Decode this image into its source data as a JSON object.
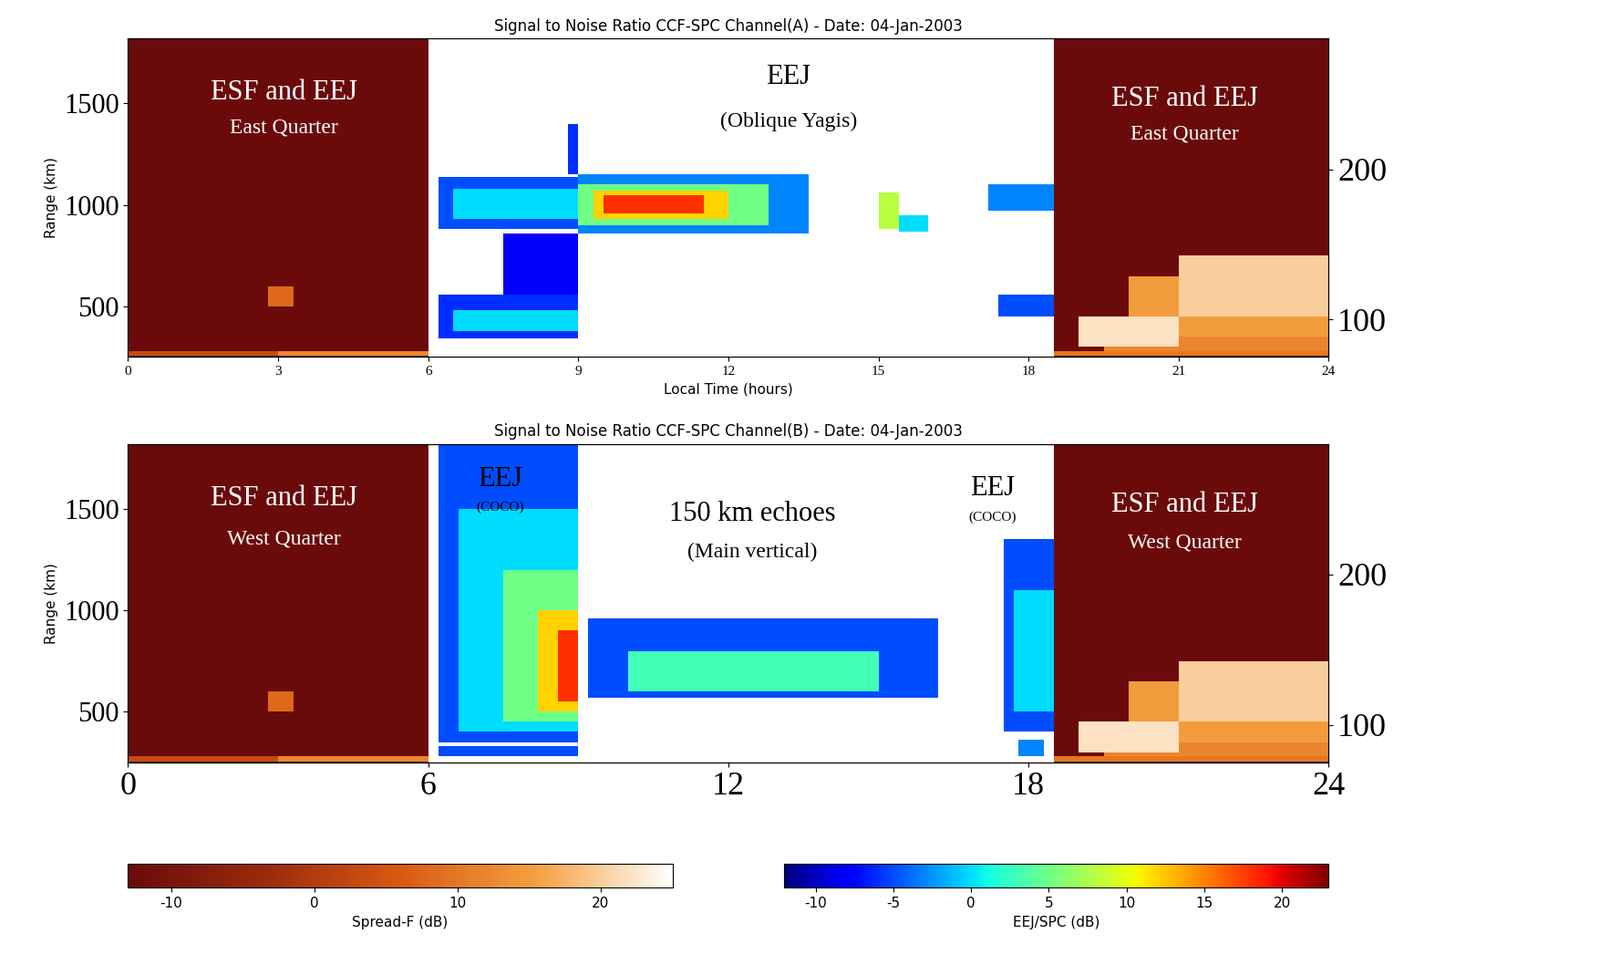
{
  "chart_data": [
    {
      "type": "heatmap",
      "title": "Signal to Noise Ratio CCF-SPC Channel(A) - Date: 04-Jan-2003",
      "x_label": "Local Time (hours)",
      "y_label": "Range (km)",
      "xlim": [
        0,
        24
      ],
      "xticks": [
        0,
        3,
        6,
        9,
        12,
        15,
        18,
        21,
        24
      ],
      "ylim": [
        250,
        1820
      ],
      "yticks": [
        500,
        1000,
        1500
      ],
      "y2lim": [
        75,
        287
      ],
      "y2ticks": [
        100,
        200
      ],
      "annotations": [
        "ESF and EEJ",
        "East Quarter",
        "EEJ",
        "(Oblique Yagis)",
        "ESF and EEJ",
        "East Quarter"
      ],
      "cells": [
        {
          "x": [
            0,
            6
          ],
          "y": [
            250,
            1820
          ],
          "value": -13,
          "scale": 0
        },
        {
          "x": [
            18.5,
            24
          ],
          "y": [
            250,
            1820
          ],
          "value": -13,
          "scale": 0
        },
        {
          "x": [
            0,
            6
          ],
          "y": [
            255,
            280
          ],
          "value": 3,
          "scale": 0
        },
        {
          "x": [
            3,
            6
          ],
          "y": [
            255,
            280
          ],
          "value": 12,
          "scale": 0
        },
        {
          "x": [
            2.8,
            3.3
          ],
          "y": [
            500,
            600
          ],
          "value": 8,
          "scale": 0
        },
        {
          "x": [
            18.5,
            24
          ],
          "y": [
            255,
            280
          ],
          "value": 10,
          "scale": 0
        },
        {
          "x": [
            19.5,
            24
          ],
          "y": [
            280,
            350
          ],
          "value": 12,
          "scale": 0
        },
        {
          "x": [
            20,
            24
          ],
          "y": [
            350,
            650
          ],
          "value": 15,
          "scale": 0
        },
        {
          "x": [
            21,
            24
          ],
          "y": [
            450,
            750
          ],
          "value": 20,
          "scale": 0
        },
        {
          "x": [
            19,
            21
          ],
          "y": [
            300,
            450
          ],
          "value": 22,
          "scale": 0
        },
        {
          "x": [
            6.2,
            9.0
          ],
          "y": [
            880,
            1140
          ],
          "value": -5,
          "scale": 1
        },
        {
          "x": [
            6.5,
            9.0
          ],
          "y": [
            930,
            1080
          ],
          "value": 0,
          "scale": 1
        },
        {
          "x": [
            8.8,
            9.0
          ],
          "y": [
            1150,
            1400
          ],
          "value": -6,
          "scale": 1
        },
        {
          "x": [
            6.2,
            9.0
          ],
          "y": [
            340,
            560
          ],
          "value": -6,
          "scale": 1
        },
        {
          "x": [
            6.5,
            9.0
          ],
          "y": [
            380,
            480
          ],
          "value": 0,
          "scale": 1
        },
        {
          "x": [
            7.5,
            9.0
          ],
          "y": [
            560,
            860
          ],
          "value": -8,
          "scale": 1
        },
        {
          "x": [
            9.0,
            13.6
          ],
          "y": [
            860,
            1150
          ],
          "value": -3,
          "scale": 1
        },
        {
          "x": [
            9.0,
            12.8
          ],
          "y": [
            900,
            1100
          ],
          "value": 5,
          "scale": 1
        },
        {
          "x": [
            9.3,
            12.0
          ],
          "y": [
            930,
            1070
          ],
          "value": 12,
          "scale": 1
        },
        {
          "x": [
            9.5,
            11.5
          ],
          "y": [
            960,
            1050
          ],
          "value": 18,
          "scale": 1
        },
        {
          "x": [
            15.0,
            15.4
          ],
          "y": [
            880,
            1060
          ],
          "value": 8,
          "scale": 1
        },
        {
          "x": [
            15.4,
            16.0
          ],
          "y": [
            870,
            950
          ],
          "value": 0,
          "scale": 1
        },
        {
          "x": [
            17.2,
            18.5
          ],
          "y": [
            970,
            1100
          ],
          "value": -3,
          "scale": 1
        },
        {
          "x": [
            17.4,
            18.5
          ],
          "y": [
            450,
            560
          ],
          "value": -5,
          "scale": 1
        }
      ]
    },
    {
      "type": "heatmap",
      "title": "Signal to Noise Ratio CCF-SPC Channel(B) - Date: 04-Jan-2003",
      "y_label": "Range (km)",
      "xlim": [
        0,
        24
      ],
      "xticks": [
        0,
        6,
        12,
        18,
        24
      ],
      "ylim": [
        250,
        1820
      ],
      "yticks": [
        500,
        1000,
        1500
      ],
      "y2lim": [
        75,
        287
      ],
      "y2ticks": [
        100,
        200
      ],
      "annotations": [
        "ESF and EEJ",
        "West Quarter",
        "EEJ",
        "(COCO)",
        "150 km echoes",
        "(Main vertical)",
        "EEJ",
        "(COCO)",
        "ESF and EEJ",
        "West Quarter"
      ],
      "cells": [
        {
          "x": [
            0,
            6
          ],
          "y": [
            250,
            1820
          ],
          "value": -13,
          "scale": 0
        },
        {
          "x": [
            18.5,
            24
          ],
          "y": [
            250,
            1820
          ],
          "value": -13,
          "scale": 0
        },
        {
          "x": [
            0,
            6
          ],
          "y": [
            255,
            280
          ],
          "value": 3,
          "scale": 0
        },
        {
          "x": [
            3,
            6
          ],
          "y": [
            255,
            280
          ],
          "value": 12,
          "scale": 0
        },
        {
          "x": [
            2.8,
            3.3
          ],
          "y": [
            500,
            600
          ],
          "value": 8,
          "scale": 0
        },
        {
          "x": [
            18.5,
            24
          ],
          "y": [
            255,
            280
          ],
          "value": 10,
          "scale": 0
        },
        {
          "x": [
            19.5,
            24
          ],
          "y": [
            280,
            350
          ],
          "value": 12,
          "scale": 0
        },
        {
          "x": [
            20,
            24
          ],
          "y": [
            350,
            650
          ],
          "value": 15,
          "scale": 0
        },
        {
          "x": [
            21,
            24
          ],
          "y": [
            450,
            750
          ],
          "value": 20,
          "scale": 0
        },
        {
          "x": [
            19,
            21
          ],
          "y": [
            300,
            450
          ],
          "value": 22,
          "scale": 0
        },
        {
          "x": [
            6.2,
            9.0
          ],
          "y": [
            350,
            1820
          ],
          "value": -5,
          "scale": 1
        },
        {
          "x": [
            6.6,
            9.0
          ],
          "y": [
            400,
            1500
          ],
          "value": 0,
          "scale": 1
        },
        {
          "x": [
            7.5,
            9.0
          ],
          "y": [
            450,
            1200
          ],
          "value": 5,
          "scale": 1
        },
        {
          "x": [
            8.2,
            9.0
          ],
          "y": [
            500,
            1000
          ],
          "value": 12,
          "scale": 1
        },
        {
          "x": [
            8.6,
            9.0
          ],
          "y": [
            550,
            900
          ],
          "value": 18,
          "scale": 1
        },
        {
          "x": [
            6.2,
            9.0
          ],
          "y": [
            280,
            330
          ],
          "value": -5,
          "scale": 1
        },
        {
          "x": [
            9.2,
            16.2
          ],
          "y": [
            570,
            960
          ],
          "value": -5,
          "scale": 1
        },
        {
          "x": [
            10,
            15
          ],
          "y": [
            600,
            800
          ],
          "value": 3,
          "scale": 1
        },
        {
          "x": [
            17.5,
            18.5
          ],
          "y": [
            400,
            1350
          ],
          "value": -5,
          "scale": 1
        },
        {
          "x": [
            17.7,
            18.5
          ],
          "y": [
            500,
            1100
          ],
          "value": 0,
          "scale": 1
        },
        {
          "x": [
            17.8,
            18.3
          ],
          "y": [
            280,
            360
          ],
          "value": -3,
          "scale": 1
        }
      ]
    }
  ],
  "colorbars": [
    {
      "label": "Spread-F (dB)",
      "range": [
        -13,
        25
      ],
      "ticks": [
        -10,
        0,
        10,
        20
      ]
    },
    {
      "label": "EEJ/SPC (dB)",
      "range": [
        -12,
        23
      ],
      "ticks": [
        -10,
        -5,
        0,
        5,
        10,
        15,
        20
      ]
    }
  ]
}
